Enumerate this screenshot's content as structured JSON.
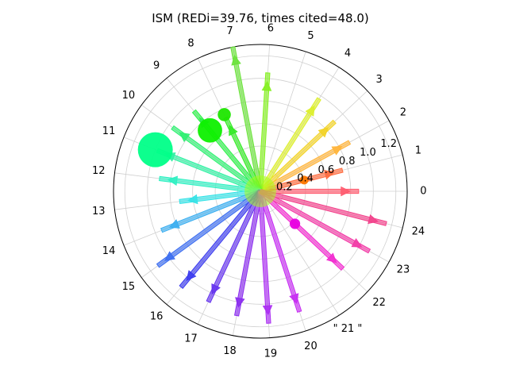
{
  "chart_data": {
    "type": "polar-arrow",
    "title": "ISM (REDi=39.76, times cited=48.0)",
    "angular_labels": [
      "0",
      "1",
      "2",
      "3",
      "4",
      "5",
      "6",
      "7",
      "8",
      "9",
      "10",
      "11",
      "12",
      "13",
      "14",
      "15",
      "16",
      "17",
      "18",
      "19",
      "20",
      "\" 21 \"",
      "22",
      "23",
      "24"
    ],
    "radial_ticks": [
      "0.2",
      "0.4",
      "0.6",
      "0.8",
      "1.0",
      "1.2"
    ],
    "rlim": [
      0,
      1.3
    ],
    "grid": true,
    "arrows": [
      {
        "label": "0",
        "r": 0.87,
        "color": "#ff5a6e"
      },
      {
        "label": "1",
        "r": 0.75,
        "color": "#ff6a3c"
      },
      {
        "label": "2",
        "r": 0.9,
        "color": "#ffb43a"
      },
      {
        "label": "3",
        "r": 0.9,
        "color": "#f2d224"
      },
      {
        "label": "4",
        "r": 0.97,
        "color": "#dcee2c"
      },
      {
        "label": "6",
        "r": 1.05,
        "color": "#84f020"
      },
      {
        "label": "7",
        "r": 1.3,
        "color": "#6ae23a"
      },
      {
        "label": "8",
        "r": 0.72,
        "color": "#32ea24"
      },
      {
        "label": "9",
        "r": 0.92,
        "color": "#2cf048"
      },
      {
        "label": "10",
        "r": 0.96,
        "color": "#2cf070"
      },
      {
        "label": "11",
        "r": 0.98,
        "color": "#2ef0a2"
      },
      {
        "label": "12",
        "r": 0.9,
        "color": "#2ef0c2"
      },
      {
        "label": "13",
        "r": 0.72,
        "color": "#34e2e6"
      },
      {
        "label": "14",
        "r": 0.94,
        "color": "#3aaef0"
      },
      {
        "label": "15",
        "r": 1.12,
        "color": "#3a6cf0"
      },
      {
        "label": "16",
        "r": 1.1,
        "color": "#3a3aee"
      },
      {
        "label": "17",
        "r": 1.08,
        "color": "#6432ee"
      },
      {
        "label": "18",
        "r": 1.12,
        "color": "#8a2cee"
      },
      {
        "label": "19",
        "r": 1.17,
        "color": "#aa2cf2"
      },
      {
        "label": "20",
        "r": 1.12,
        "color": "#c62cf2"
      },
      {
        "label": "22",
        "r": 1.0,
        "color": "#f22cd0"
      },
      {
        "label": "23",
        "r": 1.1,
        "color": "#f23aa6"
      },
      {
        "label": "24",
        "r": 1.15,
        "color": "#f2408a"
      }
    ],
    "markers": [
      {
        "label": "1",
        "r": 0.4,
        "size": 1,
        "color": "#ff7800"
      },
      {
        "label": "8",
        "r": 0.75,
        "size": 1.5,
        "color": "#1ee600"
      },
      {
        "label": "9",
        "r": 0.7,
        "size": 2.8,
        "color": "#0ef000"
      },
      {
        "label": "11",
        "r": 1.0,
        "size": 4.0,
        "color": "#00ff88"
      },
      {
        "label": "22",
        "r": 0.42,
        "size": 1.2,
        "color": "#e800e0"
      }
    ]
  }
}
